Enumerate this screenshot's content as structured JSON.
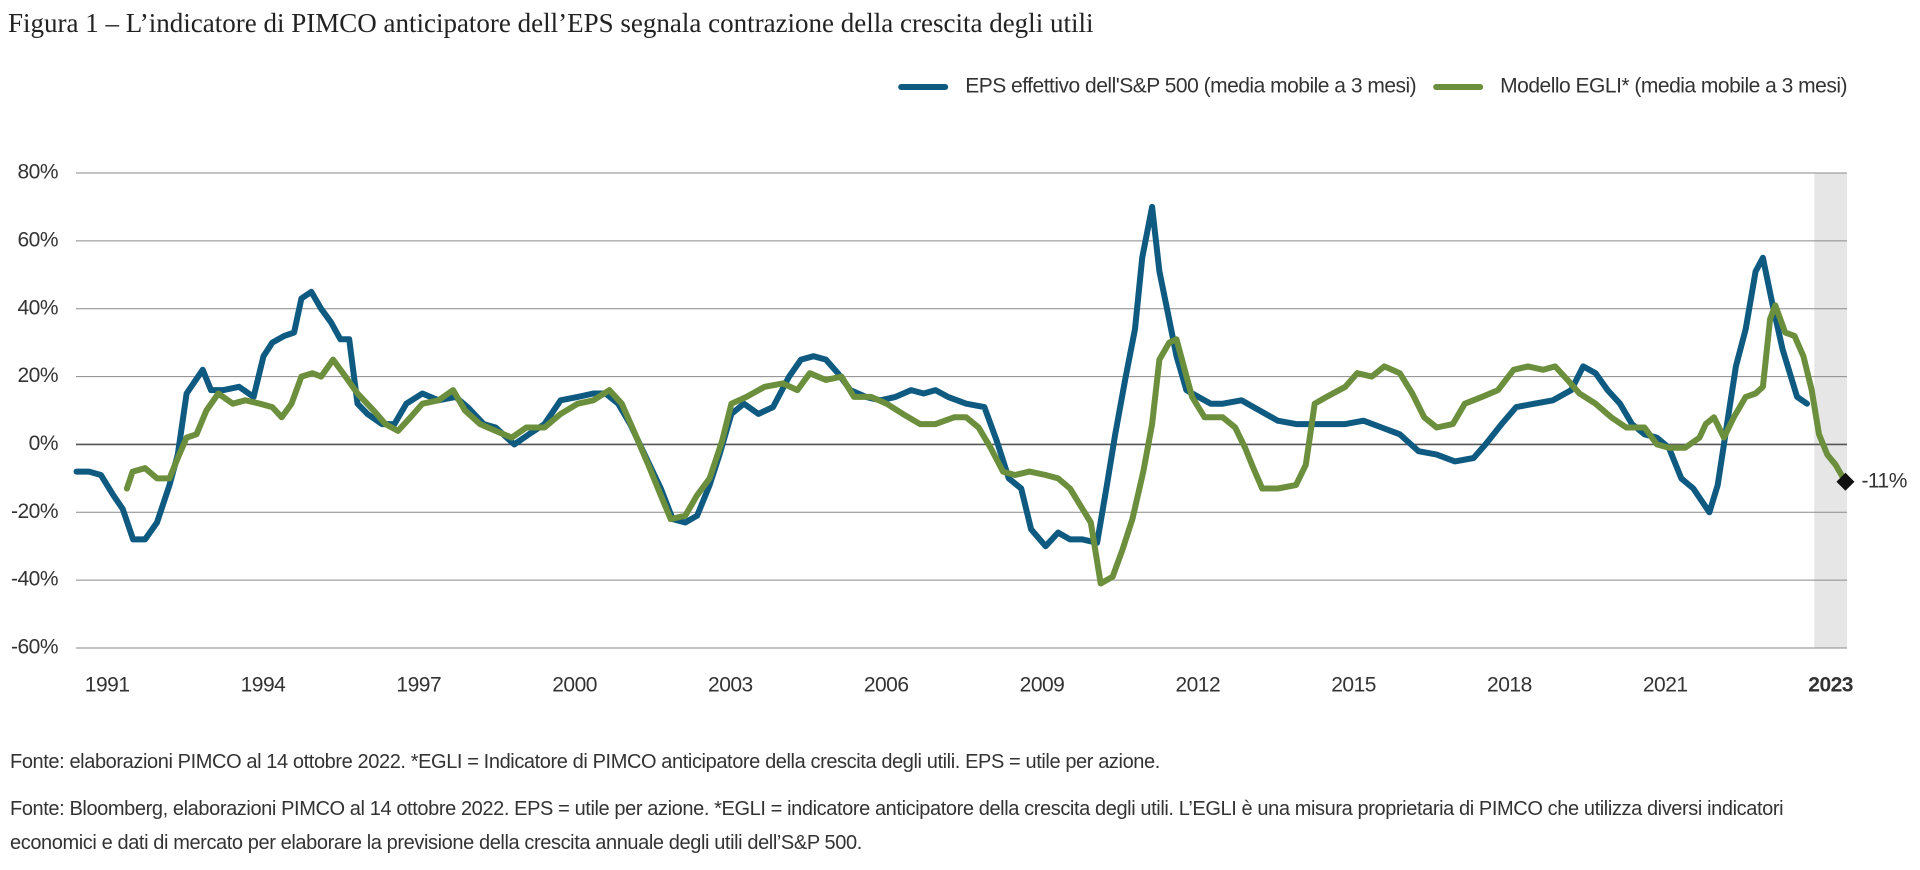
{
  "chart_data": {
    "type": "line",
    "title": "Figura 1 – L’indicatore di PIMCO anticipatore dell’EPS segnala contrazione della crescita degli utili",
    "xlim": [
      1990.4,
      2024.5
    ],
    "xticks": [
      1991,
      1994,
      1997,
      2000,
      2003,
      2006,
      2009,
      2012,
      2015,
      2018,
      2021
    ],
    "ylim": [
      -60,
      80
    ],
    "yticks": [
      {
        "value": -60,
        "label": "-60%"
      },
      {
        "value": -40,
        "label": "-40%"
      },
      {
        "value": -20,
        "label": "-20%"
      },
      {
        "value": 0,
        "label": "0%"
      },
      {
        "value": 20,
        "label": "20%"
      },
      {
        "value": 40,
        "label": "40%"
      },
      {
        "value": 60,
        "label": "60%"
      },
      {
        "value": 80,
        "label": "80%"
      }
    ],
    "grid": true,
    "legend": "top-right",
    "highlight": {
      "range": [
        2023.87,
        2024.5
      ],
      "label": "2023",
      "color": "#e6e6e6"
    },
    "annotations": [
      {
        "x": 2024.47,
        "y": -11,
        "label": "-11%"
      }
    ],
    "series": [
      {
        "name": "EPS effettivo dell'S&P 500 (media mobile a 3 mesi)",
        "color": "#0e5a80",
        "x": [
          1990.41,
          1990.65,
          1990.88,
          1991.12,
          1991.3,
          1991.5,
          1991.73,
          1991.96,
          1992.2,
          1992.36,
          1992.53,
          1992.84,
          1993,
          1993.24,
          1993.54,
          1993.82,
          1994.01,
          1994.18,
          1994.41,
          1994.6,
          1994.74,
          1994.93,
          1995.12,
          1995.31,
          1995.49,
          1995.66,
          1995.82,
          1996.01,
          1996.29,
          1996.53,
          1996.76,
          1997.07,
          1997.38,
          1997.71,
          1997.94,
          1998.25,
          1998.48,
          1998.84,
          1999.12,
          1999.42,
          1999.73,
          2000.06,
          2000.36,
          2000.6,
          2000.84,
          2001.07,
          2001.38,
          2001.66,
          2001.89,
          2002.13,
          2002.36,
          2002.6,
          2002.79,
          2003.02,
          2003.26,
          2003.54,
          2003.82,
          2004.13,
          2004.36,
          2004.6,
          2004.84,
          2005.07,
          2005.31,
          2005.61,
          2005.89,
          2006.18,
          2006.48,
          2006.72,
          2006.95,
          2007.19,
          2007.54,
          2007.89,
          2008.13,
          2008.36,
          2008.6,
          2008.79,
          2009.07,
          2009.31,
          2009.54,
          2009.78,
          2010.06,
          2010.25,
          2010.41,
          2010.6,
          2010.79,
          2010.93,
          2011.12,
          2011.26,
          2011.42,
          2011.59,
          2011.78,
          2012.01,
          2012.25,
          2012.48,
          2012.84,
          2013.19,
          2013.54,
          2013.89,
          2014.36,
          2014.84,
          2015.19,
          2015.54,
          2015.89,
          2016.25,
          2016.6,
          2016.95,
          2017.31,
          2017.54,
          2017.85,
          2018.13,
          2018.48,
          2018.84,
          2019.19,
          2019.42,
          2019.66,
          2019.89,
          2020.13,
          2020.36,
          2020.6,
          2020.84,
          2021.07,
          2021.31,
          2021.54,
          2021.85,
          2022.01,
          2022.18,
          2022.36,
          2022.55,
          2022.74,
          2022.88,
          2023.07,
          2023.26,
          2023.42,
          2023.54,
          2023.73
        ],
        "values": [
          -8,
          -8,
          -9,
          -15,
          -19,
          -28,
          -28,
          -23,
          -12,
          -3,
          15,
          22,
          16,
          16,
          17,
          14,
          26,
          30,
          32,
          33,
          43,
          45,
          40,
          36,
          31,
          31,
          12,
          9,
          6,
          6,
          12,
          15,
          13,
          14,
          11,
          6,
          5,
          0,
          3,
          6,
          13,
          14,
          15,
          15,
          12,
          6,
          -4,
          -13,
          -22,
          -23,
          -21,
          -12,
          -3,
          9,
          12,
          9,
          11,
          20,
          25,
          26,
          25,
          21,
          16,
          14,
          13,
          14,
          16,
          15,
          16,
          14,
          12,
          11,
          1,
          -10,
          -13,
          -25,
          -30,
          -26,
          -28,
          -28,
          -29,
          -12,
          3,
          19,
          34,
          55,
          70,
          51,
          39,
          26,
          16,
          14,
          12,
          12,
          13,
          10,
          7,
          6,
          6,
          6,
          7,
          5,
          3,
          -2,
          -3,
          -5,
          -4,
          0,
          6,
          11,
          12,
          13,
          16,
          23,
          21,
          16,
          12,
          6,
          3,
          2,
          -1,
          -10,
          -13,
          -20,
          -12,
          5,
          23,
          34,
          51,
          55,
          41,
          28,
          20,
          14,
          12
        ]
      },
      {
        "name": "Modello EGLI* (media mobile a 3 mesi)",
        "color": "#6b8f3c",
        "x": [
          1991.38,
          1991.49,
          1991.73,
          1991.96,
          1992.2,
          1992.36,
          1992.53,
          1992.72,
          1992.91,
          1993.14,
          1993.42,
          1993.66,
          1993.94,
          1994.18,
          1994.36,
          1994.55,
          1994.74,
          1994.95,
          1995.12,
          1995.35,
          1995.59,
          1995.82,
          1996.13,
          1996.36,
          1996.6,
          1996.84,
          1997.07,
          1997.38,
          1997.66,
          1997.89,
          1998.18,
          1998.48,
          1998.79,
          1999.07,
          1999.42,
          1999.73,
          2000.06,
          2000.36,
          2000.67,
          2000.91,
          2001.14,
          2001.42,
          2001.66,
          2001.85,
          2002.13,
          2002.36,
          2002.6,
          2002.84,
          2003.02,
          2003.31,
          2003.66,
          2004.01,
          2004.29,
          2004.53,
          2004.84,
          2005.14,
          2005.38,
          2005.71,
          2006.01,
          2006.32,
          2006.65,
          2006.95,
          2007.31,
          2007.54,
          2007.78,
          2008.01,
          2008.25,
          2008.48,
          2008.76,
          2009.07,
          2009.31,
          2009.54,
          2009.78,
          2009.94,
          2010.13,
          2010.36,
          2010.55,
          2010.74,
          2010.95,
          2011.12,
          2011.26,
          2011.45,
          2011.59,
          2011.73,
          2011.89,
          2012.13,
          2012.48,
          2012.72,
          2012.91,
          2013.07,
          2013.24,
          2013.54,
          2013.89,
          2014.08,
          2014.25,
          2014.48,
          2014.84,
          2015.07,
          2015.35,
          2015.59,
          2015.89,
          2016.13,
          2016.36,
          2016.6,
          2016.91,
          2017.14,
          2017.47,
          2017.78,
          2018.08,
          2018.36,
          2018.65,
          2018.88,
          2019.12,
          2019.35,
          2019.66,
          2019.96,
          2020.25,
          2020.6,
          2020.84,
          2021.07,
          2021.38,
          2021.66,
          2021.78,
          2021.94,
          2022.13,
          2022.32,
          2022.55,
          2022.74,
          2022.88,
          2023.02,
          2023.12,
          2023.31,
          2023.49,
          2023.66,
          2023.82,
          2023.96,
          2024.12,
          2024.28,
          2024.47
        ],
        "values": [
          -13,
          -8,
          -7,
          -10,
          -10,
          -4,
          2,
          3,
          10,
          15,
          12,
          13,
          12,
          11,
          8,
          12,
          20,
          21,
          20,
          25,
          20,
          15,
          10,
          6,
          4,
          8,
          12,
          13,
          16,
          10,
          6,
          4,
          2,
          5,
          5,
          9,
          12,
          13,
          16,
          12,
          4,
          -6,
          -15,
          -22,
          -21,
          -15,
          -10,
          1,
          12,
          14,
          17,
          18,
          16,
          21,
          19,
          20,
          14,
          14,
          12,
          9,
          6,
          6,
          8,
          8,
          5,
          -1,
          -8,
          -9,
          -8,
          -9,
          -10,
          -13,
          -19,
          -23,
          -41,
          -39,
          -31,
          -22,
          -8,
          6,
          25,
          30,
          31,
          23,
          14,
          8,
          8,
          5,
          -1,
          -7,
          -13,
          -13,
          -12,
          -6,
          12,
          14,
          17,
          21,
          20,
          23,
          21,
          15,
          8,
          5,
          6,
          12,
          14,
          16,
          22,
          23,
          22,
          23,
          19,
          15,
          12,
          8,
          5,
          5,
          0,
          -1,
          -1,
          2,
          6,
          8,
          2,
          8,
          14,
          15,
          17,
          37,
          41,
          33,
          32,
          26,
          16,
          3,
          -3,
          -6,
          -11
        ]
      }
    ],
    "footnotes": [
      "Fonte: elaborazioni PIMCO al 14 ottobre 2022. *EGLI = Indicatore di PIMCO anticipatore della crescita degli utili. EPS = utile per azione.",
      "Fonte: Bloomberg, elaborazioni PIMCO al 14 ottobre 2022. EPS = utile per azione. *EGLI = indicatore anticipatore della crescita degli utili. L’EGLI è una misura proprietaria di PIMCO che utilizza diversi indicatori economici e dati di mercato per elaborare la previsione della crescita annuale degli utili dell’S&P 500."
    ]
  }
}
